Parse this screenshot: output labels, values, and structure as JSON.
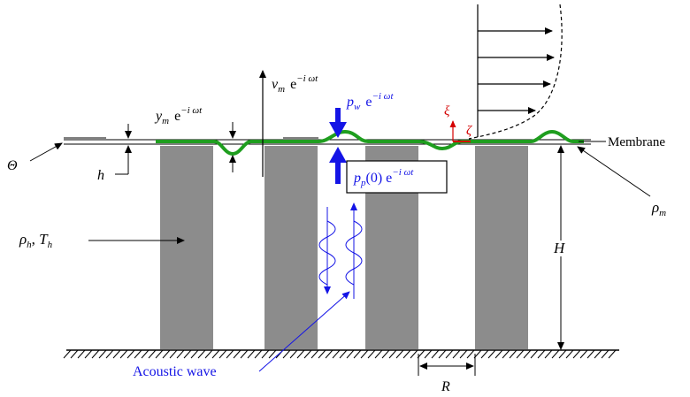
{
  "labels": {
    "membrane": "Membrane",
    "theta": "Θ",
    "h": "h",
    "H": "H",
    "R": "R",
    "rho_m": "ρ",
    "rho_m_sub": "m",
    "rho_h": "ρ",
    "rho_h_sub": "h",
    "T_h": "T",
    "T_h_sub": "h",
    "rho_h_sep": ", ",
    "acoustic_wave": "Acoustic wave",
    "xi": "ξ",
    "zeta": "ζ",
    "exp_base": "e",
    "exp_sup": "−i ωt",
    "v_m": "v",
    "v_m_sub": "m",
    "y_m": "y",
    "y_m_sub": "m",
    "p_w": "p",
    "p_w_sub": "w",
    "p_p": "p",
    "p_p_sub": "p",
    "p_p_arg": "(0) "
  },
  "colors": {
    "membrane_green": "#1f9e1f",
    "pressure_blue": "#1414e6",
    "coordinate_red": "#d40000",
    "honeycomb_gray": "#8c8c8c"
  }
}
